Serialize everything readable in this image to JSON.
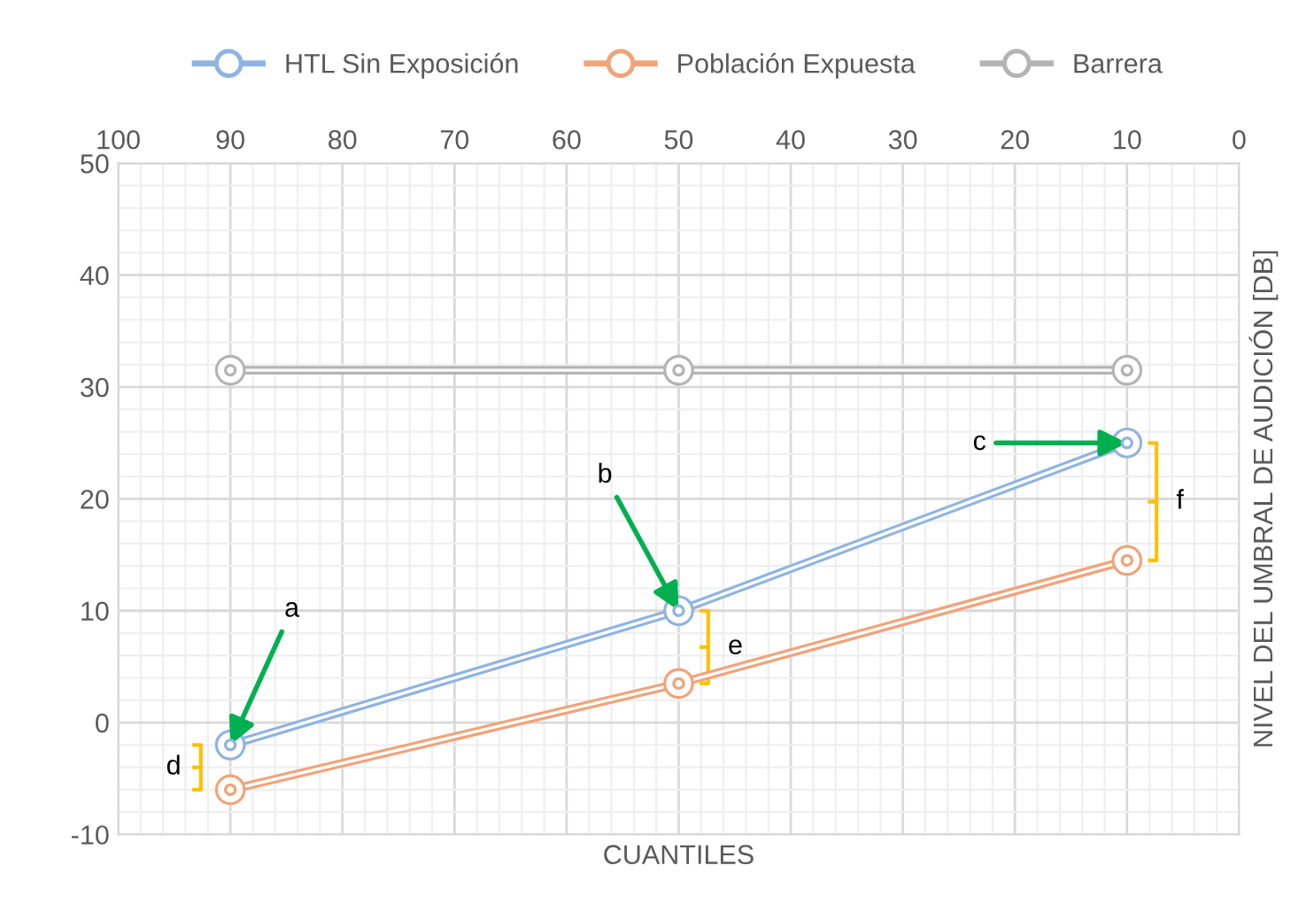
{
  "chart_data": {
    "type": "line",
    "xlabel": "CUANTILES",
    "ylabel": "NIVEL DEL UMBRAL DE AUDICIÓN [DB]",
    "x": [
      90,
      50,
      10
    ],
    "series": [
      {
        "name": "HTL Sin Exposición",
        "color": "#8fb4e3",
        "values": [
          -2,
          10,
          25
        ]
      },
      {
        "name": "Población Expuesta",
        "color": "#f0a47a",
        "values": [
          -6,
          3.5,
          14.5
        ]
      },
      {
        "name": "Barrera",
        "color": "#b4b4b4",
        "values": [
          31.5,
          31.5,
          31.5
        ]
      }
    ],
    "xlim": [
      100,
      0
    ],
    "xticks": [
      100,
      90,
      80,
      70,
      60,
      50,
      40,
      30,
      20,
      10,
      0
    ],
    "ylim": [
      -10,
      50
    ],
    "yticks": [
      -10,
      0,
      10,
      20,
      30,
      40,
      50
    ],
    "grid": true,
    "legend": "top",
    "marker": "circle",
    "line_style": "solid",
    "annotations": [
      {
        "text": "a",
        "x": 90,
        "y": -2
      },
      {
        "text": "b",
        "x": 50,
        "y": 10
      },
      {
        "text": "c",
        "x": 10,
        "y": 25
      },
      "d",
      "e",
      "f"
    ]
  }
}
